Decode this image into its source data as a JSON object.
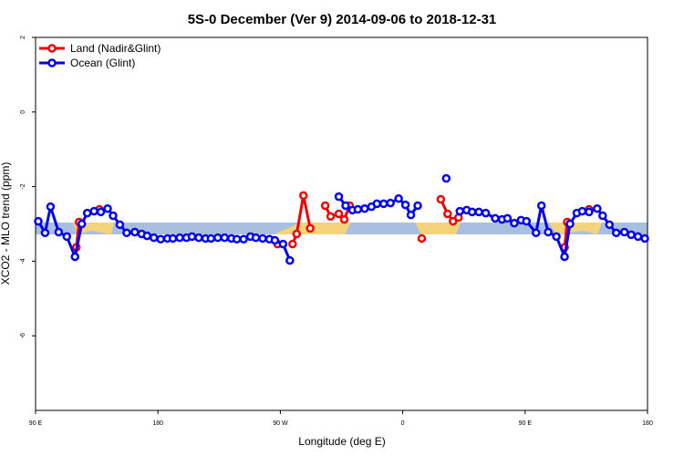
{
  "chart_data": {
    "type": "line",
    "title": "5S-0 December (Ver 9)   2014-09-06 to 2018-12-31",
    "x_label": "Longitude (deg E)",
    "y_label": "XCO2 - MLO trend (ppm)",
    "xlim": [
      90,
      540
    ],
    "xticks": [
      {
        "value": 90,
        "label": "90 E"
      },
      180,
      {
        "value": 270,
        "label": "90 W"
      },
      {
        "value": 360,
        "label": "0"
      },
      {
        "value": 450,
        "label": "90 E"
      },
      {
        "value": 540,
        "label": "180"
      }
    ],
    "ylim": [
      -8,
      2
    ],
    "yticks": [
      -6,
      -4,
      -2,
      0,
      2
    ],
    "legend": "top-left",
    "series": [
      {
        "name": "Land (Nadir&Glint)",
        "color": "#ee0000",
        "x": [
          120,
          122,
          null,
          137,
          null,
          268,
          null,
          279,
          282,
          287,
          292,
          null,
          303,
          307,
          313,
          317,
          321,
          null,
          374,
          null,
          388,
          393,
          397,
          401,
          null,
          479,
          481,
          null,
          497
        ],
        "values": [
          -3.63,
          -2.95,
          null,
          -2.61,
          null,
          -3.54,
          null,
          -3.54,
          -3.27,
          -2.24,
          -3.12,
          null,
          -2.51,
          -2.8,
          -2.73,
          -2.88,
          -2.51,
          null,
          -3.39,
          null,
          -2.34,
          -2.73,
          -2.93,
          -2.83,
          null,
          -3.63,
          -2.95,
          null,
          -2.61
        ]
      },
      {
        "name": "Ocean (Glint)",
        "color": "#0000ee",
        "x": [
          92,
          97,
          101,
          107,
          113,
          119,
          124,
          128,
          133,
          138,
          143,
          147,
          152,
          157,
          163,
          168,
          172,
          177,
          182,
          187,
          191,
          196,
          201,
          205,
          210,
          215,
          219,
          224,
          229,
          234,
          238,
          243,
          248,
          252,
          257,
          262,
          266,
          272,
          277,
          null,
          313,
          318,
          323,
          327,
          332,
          337,
          341,
          346,
          351,
          357,
          362,
          366,
          371,
          null,
          392,
          null,
          402,
          407,
          411,
          416,
          421,
          428,
          433,
          437,
          442,
          447,
          451,
          458,
          462,
          467,
          473,
          479,
          483,
          488,
          492,
          497,
          503,
          507,
          512,
          517,
          523,
          528,
          533,
          538
        ],
        "values": [
          -2.93,
          -3.24,
          -2.54,
          -3.22,
          -3.34,
          -3.88,
          -3.0,
          -2.71,
          -2.66,
          -2.68,
          -2.59,
          -2.78,
          -3.02,
          -3.24,
          -3.22,
          -3.27,
          -3.32,
          -3.37,
          -3.41,
          -3.39,
          -3.39,
          -3.37,
          -3.37,
          -3.34,
          -3.37,
          -3.39,
          -3.39,
          -3.37,
          -3.37,
          -3.39,
          -3.41,
          -3.41,
          -3.34,
          -3.37,
          -3.39,
          -3.41,
          -3.44,
          -3.54,
          -3.98,
          null,
          -2.27,
          -2.51,
          -2.63,
          -2.61,
          -2.59,
          -2.54,
          -2.46,
          -2.46,
          -2.44,
          -2.32,
          -2.49,
          -2.76,
          -2.51,
          null,
          -1.78,
          null,
          -2.66,
          -2.63,
          -2.68,
          -2.68,
          -2.71,
          -2.85,
          -2.88,
          -2.85,
          -2.98,
          -2.9,
          -2.93,
          -3.24,
          -2.51,
          -3.22,
          -3.34,
          -3.88,
          -3.0,
          -2.71,
          -2.66,
          -2.68,
          -2.59,
          -2.78,
          -3.02,
          -3.24,
          -3.22,
          -3.29,
          -3.34,
          -3.39
        ]
      }
    ]
  }
}
